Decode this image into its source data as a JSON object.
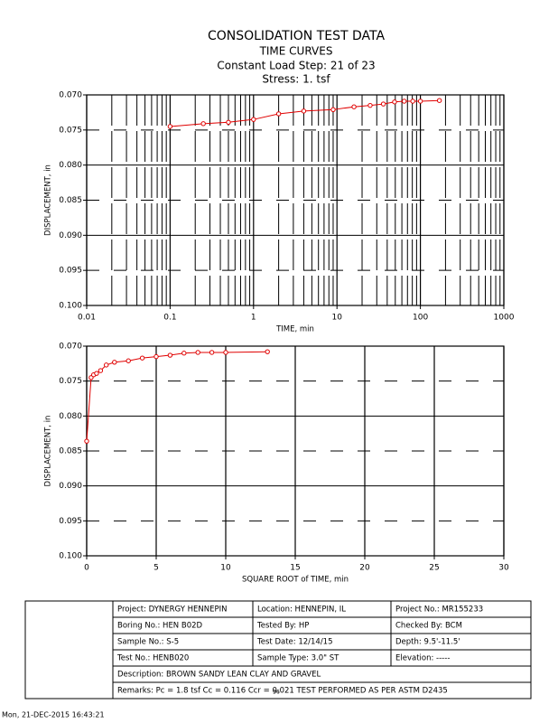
{
  "header": {
    "title": "CONSOLIDATION TEST DATA",
    "subtitle": "TIME CURVES",
    "step": "Constant Load Step: 21 of 23",
    "stress": "Stress: 1. tsf"
  },
  "chart_data": [
    {
      "type": "line",
      "xscale": "log",
      "y_inverted": true,
      "grid": true,
      "marker": "circle",
      "xlabel": "TIME, min",
      "ylabel": "DISPLACEMENT, in",
      "x": [
        0.1,
        0.25,
        0.5,
        1,
        2,
        4,
        9,
        16,
        25,
        36,
        49,
        64,
        81,
        100,
        169
      ],
      "series": [
        {
          "color": "#e00000",
          "values": [
            0.0745,
            0.0741,
            0.0739,
            0.0735,
            0.0727,
            0.0723,
            0.0721,
            0.0717,
            0.0715,
            0.0713,
            0.071,
            0.0709,
            0.0709,
            0.0709,
            0.0708
          ]
        }
      ],
      "xlim": [
        0.01,
        1000
      ],
      "xticks": [
        0.01,
        0.1,
        1,
        10,
        100,
        1000
      ],
      "xminorticks": [
        0.02,
        0.03,
        0.04,
        0.05,
        0.06,
        0.07,
        0.08,
        0.09,
        0.2,
        0.3,
        0.4,
        0.5,
        0.6,
        0.7,
        0.8,
        0.9,
        2,
        3,
        4,
        5,
        6,
        7,
        8,
        9,
        20,
        30,
        40,
        50,
        60,
        70,
        80,
        90,
        200,
        300,
        400,
        500,
        600,
        700,
        800,
        900
      ],
      "ylim": [
        0.07,
        0.1
      ],
      "yticks": [
        {
          "value": 0.07,
          "label": "0.070"
        },
        {
          "value": 0.075,
          "label": "0.075"
        },
        {
          "value": 0.08,
          "label": "0.080"
        },
        {
          "value": 0.085,
          "label": "0.085"
        },
        {
          "value": 0.09,
          "label": "0.090"
        },
        {
          "value": 0.095,
          "label": "0.095"
        },
        {
          "value": 0.1,
          "label": "0.100"
        }
      ]
    },
    {
      "type": "line",
      "xscale": "linear",
      "y_inverted": true,
      "grid": true,
      "marker": "circle",
      "xlabel": "SQUARE ROOT of TIME, min",
      "ylabel": "DISPLACEMENT, in",
      "x": [
        0,
        0.32,
        0.5,
        0.71,
        1,
        1.41,
        2,
        3,
        4,
        5,
        6,
        7,
        8,
        9,
        10,
        13
      ],
      "series": [
        {
          "color": "#e00000",
          "values": [
            0.0836,
            0.0745,
            0.0741,
            0.0739,
            0.0735,
            0.0727,
            0.0723,
            0.0721,
            0.0717,
            0.0715,
            0.0713,
            0.071,
            0.0709,
            0.0709,
            0.0709,
            0.0708
          ]
        }
      ],
      "xlim": [
        0,
        30
      ],
      "xticks": [
        0,
        5,
        10,
        15,
        20,
        25,
        30
      ],
      "ylim": [
        0.07,
        0.1
      ],
      "yticks": [
        {
          "value": 0.07,
          "label": "0.070"
        },
        {
          "value": 0.075,
          "label": "0.075"
        },
        {
          "value": 0.08,
          "label": "0.080"
        },
        {
          "value": 0.085,
          "label": "0.085"
        },
        {
          "value": 0.09,
          "label": "0.090"
        },
        {
          "value": 0.095,
          "label": "0.095"
        },
        {
          "value": 0.1,
          "label": "0.100"
        }
      ]
    }
  ],
  "table": {
    "rows": [
      [
        "Project: DYNERGY HENNEPIN",
        "Location: HENNEPIN, IL",
        "Project No.: MR155233"
      ],
      [
        "Boring No.: HEN B02D",
        "Tested By: HP",
        "Checked By: BCM"
      ],
      [
        "Sample No.: S-5",
        "Test Date: 12/14/15",
        "Depth: 9.5'-11.5'"
      ],
      [
        "Test No.: HENB020",
        "Sample Type: 3.0\" ST",
        "Elevation: -----"
      ],
      [
        "Description: BROWN SANDY LEAN CLAY AND GRAVEL"
      ],
      [
        "Remarks: Pc = 1.8 tsf Cc = 0.116 Ccr = 0.021 TEST PERFORMED AS PER ASTM D2435"
      ],
      [
        "36"
      ]
    ]
  },
  "footer": "Mon, 21-DEC-2015 16:43:21"
}
